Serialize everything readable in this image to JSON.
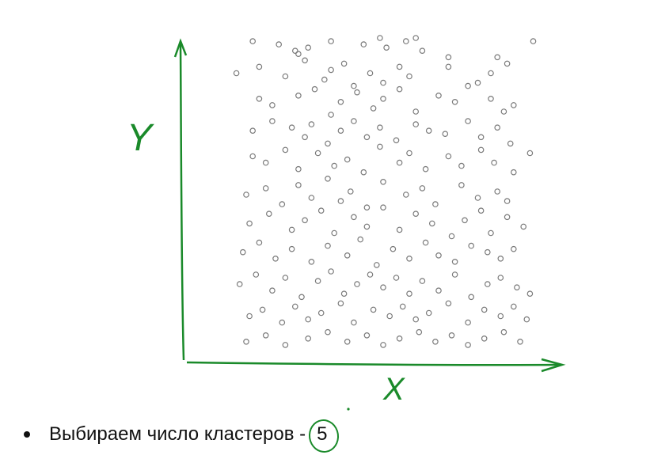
{
  "colors": {
    "axis": "#1a8a2a",
    "point": "#7a7a7a"
  },
  "chart_data": {
    "type": "scatter",
    "title": "",
    "xlabel": "X",
    "ylabel": "Y",
    "xlim": [
      0,
      100
    ],
    "ylim": [
      0,
      100
    ],
    "grid": false,
    "legend": "none",
    "series": [
      {
        "x": [
          10,
          18,
          23,
          24,
          27,
          34,
          44,
          51,
          49,
          57,
          60,
          62,
          70,
          85,
          96,
          5,
          12,
          20,
          26,
          32,
          34,
          38,
          41,
          46,
          50,
          55,
          58,
          70,
          79,
          83,
          88,
          12,
          16,
          24,
          29,
          34,
          37,
          42,
          47,
          50,
          55,
          60,
          67,
          72,
          76,
          83,
          87,
          90,
          10,
          16,
          22,
          26,
          28,
          33,
          37,
          41,
          45,
          49,
          54,
          60,
          64,
          69,
          76,
          80,
          85,
          89,
          10,
          14,
          20,
          24,
          30,
          35,
          39,
          44,
          49,
          55,
          58,
          63,
          70,
          74,
          80,
          84,
          90,
          95,
          8,
          14,
          19,
          24,
          28,
          33,
          37,
          40,
          45,
          50,
          57,
          62,
          66,
          74,
          79,
          85,
          88,
          9,
          15,
          22,
          26,
          31,
          35,
          41,
          45,
          50,
          55,
          60,
          65,
          71,
          75,
          80,
          83,
          88,
          93,
          7,
          12,
          17,
          22,
          28,
          33,
          39,
          43,
          48,
          53,
          58,
          63,
          67,
          72,
          77,
          82,
          86,
          90,
          6,
          11,
          16,
          20,
          25,
          30,
          34,
          38,
          42,
          46,
          50,
          54,
          58,
          62,
          67,
          72,
          77,
          82,
          86,
          91,
          95,
          9,
          13,
          19,
          23,
          27,
          31,
          37,
          41,
          47,
          52,
          56,
          60,
          64,
          70,
          76,
          81,
          86,
          90,
          94,
          8,
          14,
          20,
          27,
          33,
          39,
          45,
          50,
          55,
          61,
          66,
          71,
          76,
          81,
          87,
          92
        ],
        "y": [
          98,
          97,
          95,
          94,
          96,
          98,
          97,
          96,
          99,
          98,
          99,
          95,
          93,
          93,
          98,
          88,
          90,
          87,
          92,
          86,
          89,
          91,
          84,
          88,
          85,
          90,
          87,
          90,
          85,
          88,
          91,
          80,
          78,
          81,
          83,
          75,
          79,
          82,
          77,
          80,
          83,
          76,
          81,
          79,
          84,
          80,
          76,
          78,
          70,
          73,
          71,
          68,
          72,
          66,
          70,
          73,
          68,
          71,
          67,
          72,
          70,
          69,
          73,
          68,
          71,
          66,
          62,
          60,
          64,
          58,
          63,
          59,
          61,
          57,
          65,
          60,
          63,
          58,
          62,
          59,
          64,
          60,
          57,
          63,
          50,
          52,
          47,
          53,
          49,
          55,
          48,
          51,
          46,
          54,
          50,
          52,
          47,
          53,
          49,
          51,
          48,
          41,
          44,
          39,
          42,
          45,
          38,
          43,
          40,
          46,
          39,
          44,
          41,
          37,
          42,
          45,
          38,
          43,
          40,
          32,
          35,
          30,
          33,
          29,
          34,
          31,
          36,
          28,
          33,
          30,
          35,
          31,
          29,
          34,
          32,
          30,
          33,
          22,
          25,
          20,
          24,
          18,
          23,
          26,
          19,
          22,
          25,
          21,
          24,
          19,
          23,
          20,
          25,
          18,
          22,
          24,
          21,
          19,
          12,
          14,
          10,
          15,
          11,
          13,
          16,
          10,
          14,
          12,
          15,
          11,
          13,
          16,
          10,
          14,
          12,
          15,
          11,
          4,
          6,
          3,
          5,
          7,
          4,
          6,
          3,
          5,
          7,
          4,
          6,
          3,
          5,
          7,
          4
        ]
      }
    ]
  },
  "bullet": {
    "text": "Выбираем число кластеров -",
    "value": "5"
  }
}
